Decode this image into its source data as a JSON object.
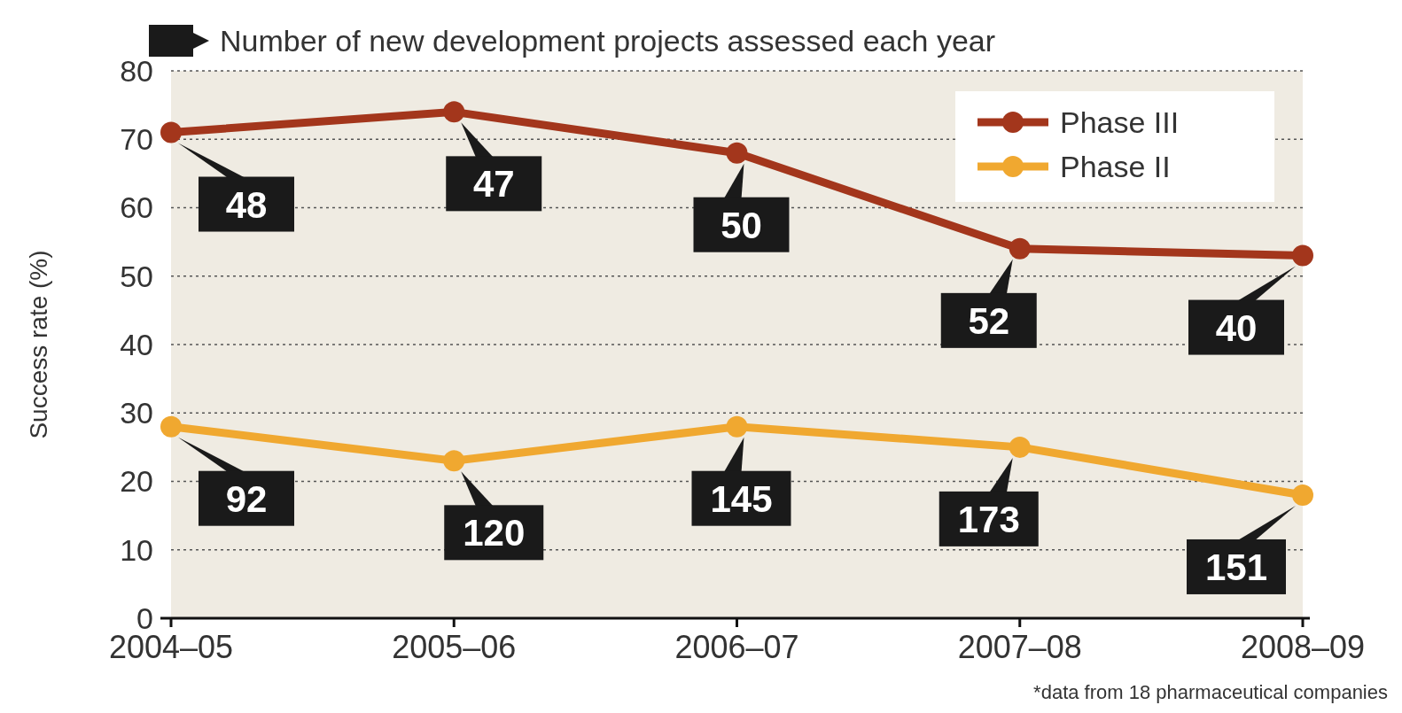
{
  "chart_data": {
    "type": "line",
    "subtitle": "Number of new development projects assessed each year",
    "ylabel": "Success rate (%)",
    "categories": [
      "2004–05",
      "2005–06",
      "2006–07",
      "2007–08",
      "2008–09"
    ],
    "series": [
      {
        "name": "Phase III",
        "color": "#a3361c",
        "values": [
          71,
          74,
          68,
          54,
          53
        ]
      },
      {
        "name": "Phase II",
        "color": "#f0a830",
        "values": [
          28,
          23,
          28,
          25,
          18
        ]
      }
    ],
    "ylim": [
      0,
      80
    ],
    "yticks": [
      0,
      10,
      20,
      30,
      40,
      50,
      60,
      70,
      80
    ],
    "grid": "y",
    "legend": "top right",
    "marker": "circle",
    "line_style": "solid",
    "annotations": [
      {
        "text": "48",
        "x": "2004–05",
        "y": 71
      },
      {
        "text": "47",
        "x": "2005–06",
        "y": 74
      },
      {
        "text": "50",
        "x": "2006–07",
        "y": 68
      },
      {
        "text": "52",
        "x": "2007–08",
        "y": 54
      },
      {
        "text": "40",
        "x": "2008–09",
        "y": 53
      },
      {
        "text": "92",
        "x": "2004–05",
        "y": 28
      },
      {
        "text": "120",
        "x": "2005–06",
        "y": 23
      },
      {
        "text": "145",
        "x": "2006–07",
        "y": 28
      },
      {
        "text": "173",
        "x": "2007–08",
        "y": 25
      },
      {
        "text": "151",
        "x": "2008–09",
        "y": 18
      },
      "*data from 18 pharmaceutical companies"
    ]
  }
}
